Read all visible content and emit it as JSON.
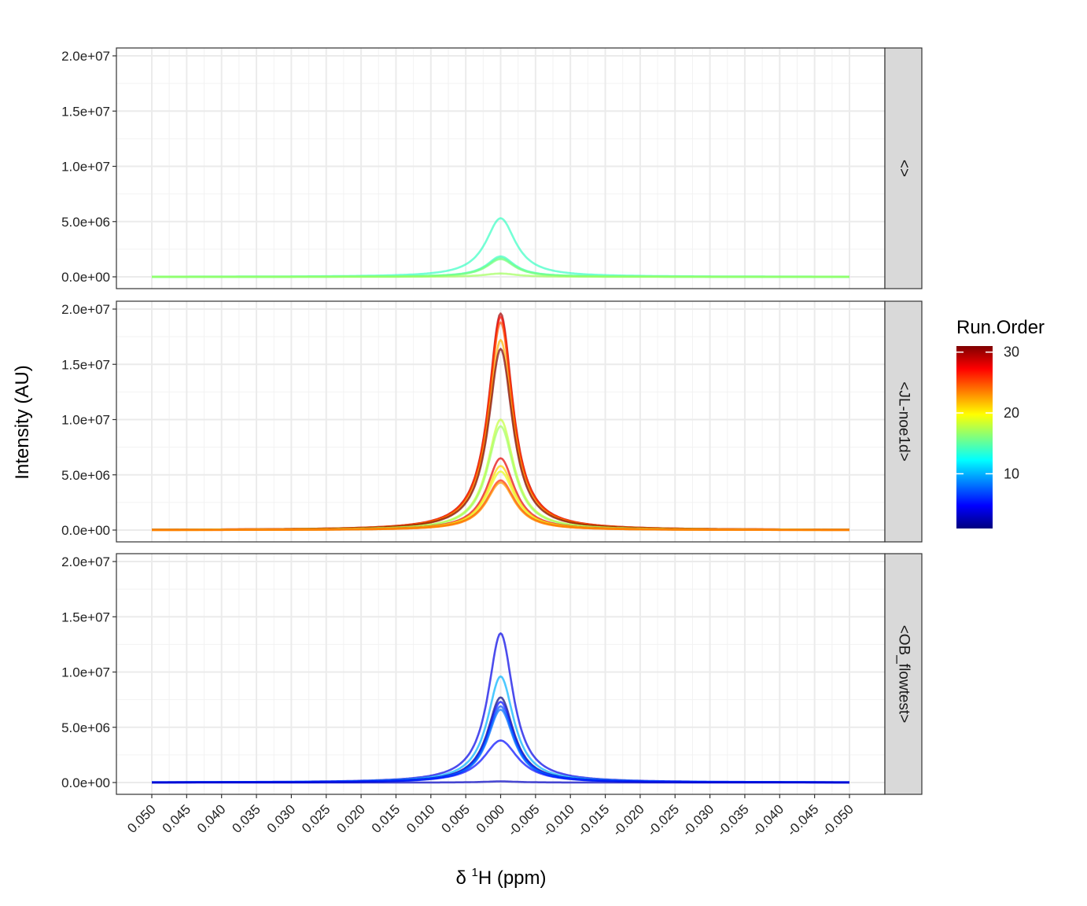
{
  "chart_data": {
    "type": "line",
    "facet_by": "Pulse sequence",
    "xlabel": "δ ¹H (ppm)",
    "xlabel_parts": {
      "delta": "δ ",
      "sup": "1",
      "rest": "H (ppm)"
    },
    "ylabel": "Intensity (AU)",
    "xlim": [
      0.05,
      -0.05
    ],
    "x_reversed": true,
    "x_ticks": [
      0.05,
      0.045,
      0.04,
      0.035,
      0.03,
      0.025,
      0.02,
      0.015,
      0.01,
      0.005,
      0.0,
      -0.005,
      -0.01,
      -0.015,
      -0.02,
      -0.025,
      -0.03,
      -0.035,
      -0.04,
      -0.045,
      -0.05
    ],
    "x_tick_labels": [
      "0.050",
      "0.045",
      "0.040",
      "0.035",
      "0.030",
      "0.025",
      "0.020",
      "0.015",
      "0.010",
      "0.005",
      "0.000",
      "-0.005",
      "-0.010",
      "-0.015",
      "-0.020",
      "-0.025",
      "-0.030",
      "-0.035",
      "-0.040",
      "-0.045",
      "-0.050"
    ],
    "ylim": [
      0,
      20000000
    ],
    "y_ticks": [
      0,
      5000000,
      10000000,
      15000000,
      20000000
    ],
    "y_tick_labels": [
      "0.0e+00",
      "5.0e+06",
      "1.0e+07",
      "1.5e+07",
      "2.0e+07"
    ],
    "grid": true,
    "legend": {
      "title": "Run.Order",
      "type": "colorbar",
      "position": "right",
      "range": [
        1,
        31
      ],
      "ticks": [
        10,
        20,
        30
      ],
      "tick_labels": [
        "10",
        "20",
        "30"
      ],
      "colors": [
        "#00007F",
        "#0000FF",
        "#007FFF",
        "#00FFFF",
        "#7FFF7F",
        "#FFFF00",
        "#FF7F00",
        "#FF0000",
        "#7F0000"
      ]
    },
    "facets": [
      {
        "strip": "<>",
        "series": [
          {
            "run_order": 14,
            "peak_x": 0.0,
            "peak": 5300000,
            "width": 0.0026
          },
          {
            "run_order": 14,
            "peak_x": 0.0,
            "peak": 1850000,
            "width": 0.0024
          },
          {
            "run_order": 15,
            "peak_x": 0.0,
            "peak": 1700000,
            "width": 0.0024
          },
          {
            "run_order": 16,
            "peak_x": 0.0,
            "peak": 1600000,
            "width": 0.0024
          },
          {
            "run_order": 17,
            "peak_x": 0.0,
            "peak": 300000,
            "width": 0.0028
          }
        ]
      },
      {
        "strip": "<JL-noe1d>",
        "series": [
          {
            "run_order": 30,
            "peak_x": 0.0,
            "peak": 19600000,
            "width": 0.0021
          },
          {
            "run_order": 27,
            "peak_x": 0.0,
            "peak": 19300000,
            "width": 0.0021
          },
          {
            "run_order": 25,
            "peak_x": 0.0,
            "peak": 18800000,
            "width": 0.0021
          },
          {
            "run_order": 22,
            "peak_x": 0.0,
            "peak": 17200000,
            "width": 0.0021
          },
          {
            "run_order": 31,
            "peak_x": 0.0,
            "peak": 16400000,
            "width": 0.0021
          },
          {
            "run_order": 18,
            "peak_x": 0.0,
            "peak": 10000000,
            "width": 0.0023
          },
          {
            "run_order": 17,
            "peak_x": 0.0,
            "peak": 9400000,
            "width": 0.0023
          },
          {
            "run_order": 28,
            "peak_x": 0.0,
            "peak": 6500000,
            "width": 0.0024
          },
          {
            "run_order": 21,
            "peak_x": 0.0,
            "peak": 5800000,
            "width": 0.0024
          },
          {
            "run_order": 19,
            "peak_x": 0.0,
            "peak": 5300000,
            "width": 0.0024
          },
          {
            "run_order": 26,
            "peak_x": 0.0,
            "peak": 4500000,
            "width": 0.0025
          },
          {
            "run_order": 23,
            "peak_x": 0.0,
            "peak": 4300000,
            "width": 0.0025
          }
        ]
      },
      {
        "strip": "<OB_flowtest>",
        "series": [
          {
            "run_order": 4,
            "peak_x": 0.0,
            "peak": 13500000,
            "width": 0.0022
          },
          {
            "run_order": 10,
            "peak_x": 0.0,
            "peak": 9600000,
            "width": 0.0023
          },
          {
            "run_order": 1,
            "peak_x": 0.0,
            "peak": 7700000,
            "width": 0.0023
          },
          {
            "run_order": 5,
            "peak_x": 0.0,
            "peak": 7300000,
            "width": 0.0023
          },
          {
            "run_order": 7,
            "peak_x": 0.0,
            "peak": 6900000,
            "width": 0.0023
          },
          {
            "run_order": 8,
            "peak_x": 0.0,
            "peak": 6600000,
            "width": 0.0023
          },
          {
            "run_order": 5,
            "peak_x": 0.0,
            "peak": 3800000,
            "width": 0.003
          },
          {
            "run_order": 3,
            "peak_x": 0.0,
            "peak": 100000,
            "width": 0.003
          }
        ]
      }
    ]
  }
}
